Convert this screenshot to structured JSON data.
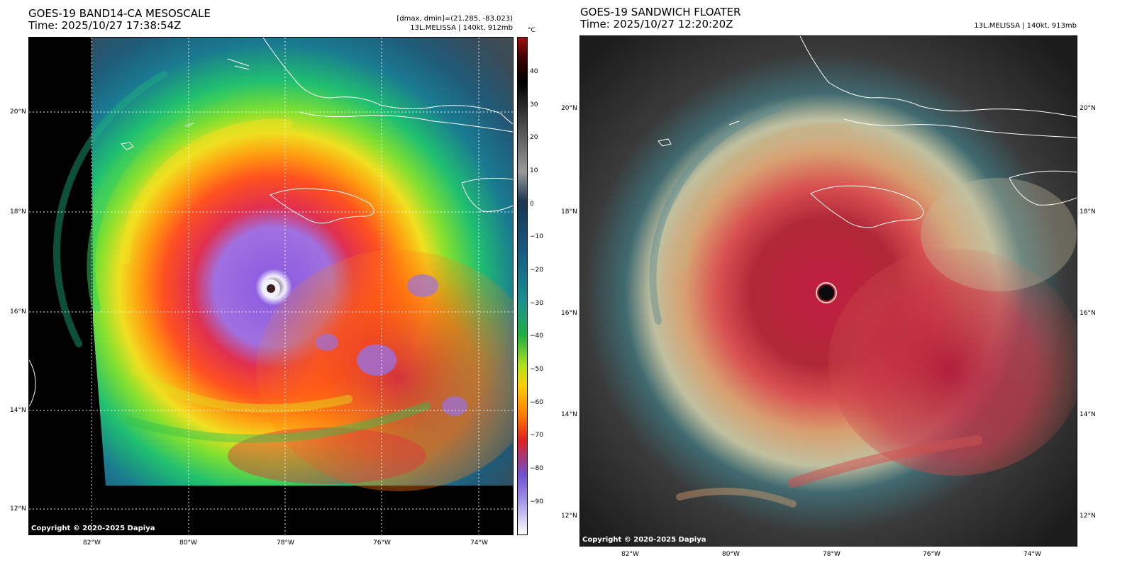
{
  "left_panel": {
    "title": "GOES-19 BAND14-CA MESOSCALE",
    "time": "Time: 2025/10/27 17:38:54Z",
    "dmax_dmin": "[dmax, dmin]=(21.285, -83.023)",
    "storm_info": "13L.MELISSA | 140kt, 912mb",
    "copyright": "Copyright © 2020-2025 Dapiya",
    "lat_labels": [
      "20°N",
      "18°N",
      "16°N",
      "14°N",
      "12°N"
    ],
    "lon_labels": [
      "82°W",
      "80°W",
      "78°W",
      "76°W",
      "74°W"
    ],
    "colorbar": {
      "unit": "°C",
      "ticks": [
        "40",
        "30",
        "20",
        "10",
        "0",
        "−10",
        "−20",
        "−30",
        "−40",
        "−50",
        "−60",
        "−70",
        "−80",
        "−90"
      ]
    }
  },
  "right_panel": {
    "title": "GOES-19 SANDWICH FLOATER",
    "time": "Time: 2025/10/27 12:20:20Z",
    "storm_info": "13L.MELISSA | 140kt, 913mb",
    "copyright": "Copyright © 2020-2025 Dapiya",
    "lat_labels": [
      "20°N",
      "18°N",
      "16°N",
      "14°N",
      "12°N"
    ],
    "lon_labels": [
      "82°W",
      "80°W",
      "78°W",
      "76°W",
      "74°W"
    ]
  }
}
